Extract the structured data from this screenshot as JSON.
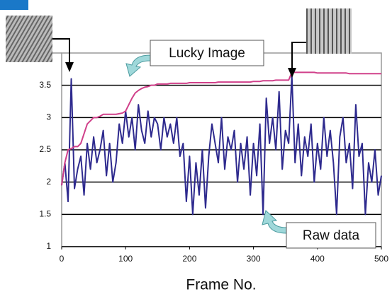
{
  "chart_data": {
    "type": "line",
    "x": [
      0,
      5,
      10,
      15,
      20,
      25,
      30,
      35,
      40,
      45,
      50,
      55,
      60,
      65,
      70,
      75,
      80,
      85,
      90,
      95,
      100,
      105,
      110,
      115,
      120,
      125,
      130,
      135,
      140,
      145,
      150,
      155,
      160,
      165,
      170,
      175,
      180,
      185,
      190,
      195,
      200,
      205,
      210,
      215,
      220,
      225,
      230,
      235,
      240,
      245,
      250,
      255,
      260,
      265,
      270,
      275,
      280,
      285,
      290,
      295,
      300,
      305,
      310,
      315,
      320,
      325,
      330,
      335,
      340,
      345,
      350,
      355,
      360,
      365,
      370,
      375,
      380,
      385,
      390,
      395,
      400,
      405,
      410,
      415,
      420,
      425,
      430,
      435,
      440,
      445,
      450,
      455,
      460,
      465,
      470,
      475,
      480,
      485,
      490,
      495,
      500
    ],
    "series": [
      {
        "name": "Raw data",
        "color": "#2e2a8e",
        "values": [
          1.95,
          2.3,
          1.7,
          3.6,
          1.9,
          2.2,
          2.4,
          1.8,
          2.6,
          2.2,
          2.7,
          2.3,
          2.5,
          2.8,
          2.1,
          2.6,
          2.0,
          2.3,
          2.9,
          2.6,
          3.1,
          2.7,
          3.0,
          2.5,
          3.2,
          2.8,
          2.6,
          3.1,
          2.7,
          3.0,
          2.9,
          2.5,
          3.0,
          2.7,
          2.9,
          2.6,
          3.0,
          2.4,
          2.6,
          1.7,
          2.4,
          1.5,
          2.3,
          1.8,
          2.5,
          1.6,
          2.4,
          2.9,
          2.6,
          2.3,
          3.0,
          2.2,
          2.7,
          2.5,
          2.8,
          2.0,
          2.6,
          2.2,
          2.7,
          1.8,
          2.6,
          2.1,
          2.9,
          1.5,
          3.3,
          2.6,
          3.0,
          2.5,
          3.4,
          2.2,
          2.8,
          2.6,
          3.65,
          2.3,
          2.9,
          2.1,
          2.7,
          2.4,
          2.9,
          2.0,
          2.6,
          2.2,
          3.0,
          2.4,
          2.8,
          2.3,
          1.5,
          2.7,
          3.0,
          2.3,
          2.6,
          1.9,
          3.2,
          2.4,
          2.6,
          1.5,
          2.3,
          2.0,
          2.5,
          1.8,
          2.1
        ]
      },
      {
        "name": "Lucky Image",
        "color": "#d0408a",
        "values": [
          1.95,
          2.3,
          2.5,
          2.52,
          2.55,
          2.55,
          2.6,
          2.75,
          2.9,
          2.95,
          3.0,
          3.0,
          3.02,
          3.05,
          3.05,
          3.05,
          3.05,
          3.05,
          3.06,
          3.07,
          3.1,
          3.2,
          3.3,
          3.38,
          3.42,
          3.45,
          3.47,
          3.48,
          3.5,
          3.5,
          3.52,
          3.52,
          3.52,
          3.52,
          3.53,
          3.53,
          3.53,
          3.53,
          3.53,
          3.53,
          3.54,
          3.54,
          3.54,
          3.54,
          3.54,
          3.54,
          3.54,
          3.54,
          3.54,
          3.55,
          3.55,
          3.55,
          3.55,
          3.55,
          3.55,
          3.55,
          3.55,
          3.55,
          3.55,
          3.55,
          3.56,
          3.56,
          3.56,
          3.57,
          3.57,
          3.57,
          3.57,
          3.58,
          3.58,
          3.58,
          3.58,
          3.58,
          3.7,
          3.7,
          3.7,
          3.7,
          3.7,
          3.7,
          3.7,
          3.7,
          3.69,
          3.69,
          3.69,
          3.69,
          3.69,
          3.69,
          3.69,
          3.69,
          3.69,
          3.69,
          3.68,
          3.68,
          3.68,
          3.68,
          3.68,
          3.68,
          3.68,
          3.68,
          3.68,
          3.68,
          3.68
        ]
      }
    ],
    "xlabel": "Frame No.",
    "xlim": [
      0,
      500
    ],
    "xticks": [
      0,
      100,
      200,
      300,
      400,
      500
    ],
    "ylim": [
      1,
      4
    ],
    "yticks": [
      1,
      1.5,
      2,
      2.5,
      3,
      3.5
    ],
    "grid": true
  }
}
